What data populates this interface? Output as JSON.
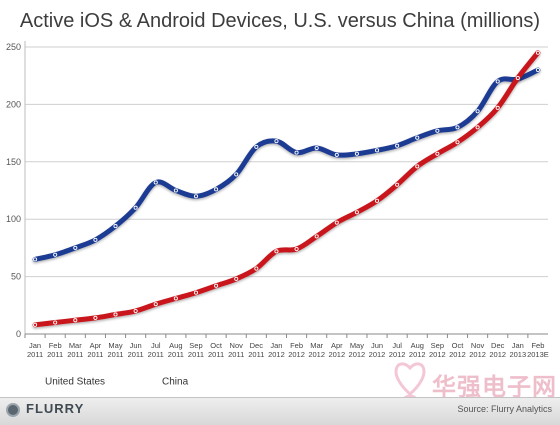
{
  "chart_data": {
    "type": "line",
    "title": "Active iOS & Android Devices, U.S. versus China (millions)",
    "xlabel": "",
    "ylabel": "",
    "ylim": [
      0,
      250
    ],
    "yticks": [
      0,
      50,
      100,
      150,
      200,
      250
    ],
    "grid": "horizontal",
    "legend": "bottom-left",
    "categories": [
      [
        "Jan",
        "2011"
      ],
      [
        "Feb",
        "2011"
      ],
      [
        "Mar",
        "2011"
      ],
      [
        "Apr",
        "2011"
      ],
      [
        "May",
        "2011"
      ],
      [
        "Jun",
        "2011"
      ],
      [
        "Jul",
        "2011"
      ],
      [
        "Aug",
        "2011"
      ],
      [
        "Sep",
        "2011"
      ],
      [
        "Oct",
        "2011"
      ],
      [
        "Nov",
        "2011"
      ],
      [
        "Dec",
        "2011"
      ],
      [
        "Jan",
        "2012"
      ],
      [
        "Feb",
        "2012"
      ],
      [
        "Mar",
        "2012"
      ],
      [
        "Apr",
        "2012"
      ],
      [
        "May",
        "2012"
      ],
      [
        "Jun",
        "2012"
      ],
      [
        "Jul",
        "2012"
      ],
      [
        "Aug",
        "2012"
      ],
      [
        "Sep",
        "2012"
      ],
      [
        "Oct",
        "2012"
      ],
      [
        "Nov",
        "2012"
      ],
      [
        "Dec",
        "2012"
      ],
      [
        "Jan",
        "2013"
      ],
      [
        "Feb",
        "2013E"
      ]
    ],
    "series": [
      {
        "name": "United States",
        "color": "#1f3a93",
        "values": [
          65,
          69,
          75,
          82,
          94,
          110,
          132,
          125,
          120,
          126,
          139,
          163,
          168,
          158,
          162,
          156,
          157,
          160,
          164,
          171,
          177,
          180,
          194,
          220,
          222,
          230
        ]
      },
      {
        "name": "China",
        "color": "#c8161d",
        "values": [
          8,
          10,
          12,
          14,
          17,
          20,
          26,
          31,
          36,
          42,
          48,
          57,
          72,
          74,
          85,
          97,
          106,
          116,
          130,
          146,
          157,
          167,
          180,
          197,
          223,
          245
        ]
      }
    ]
  },
  "footer": {
    "logo": "FLURRY",
    "source": "Source: Flurry Analytics"
  },
  "watermark": {
    "text": "华强电子网"
  },
  "icons": {
    "logo": "flurry-logo-icon",
    "watermark": "watermark-logo-icon"
  }
}
